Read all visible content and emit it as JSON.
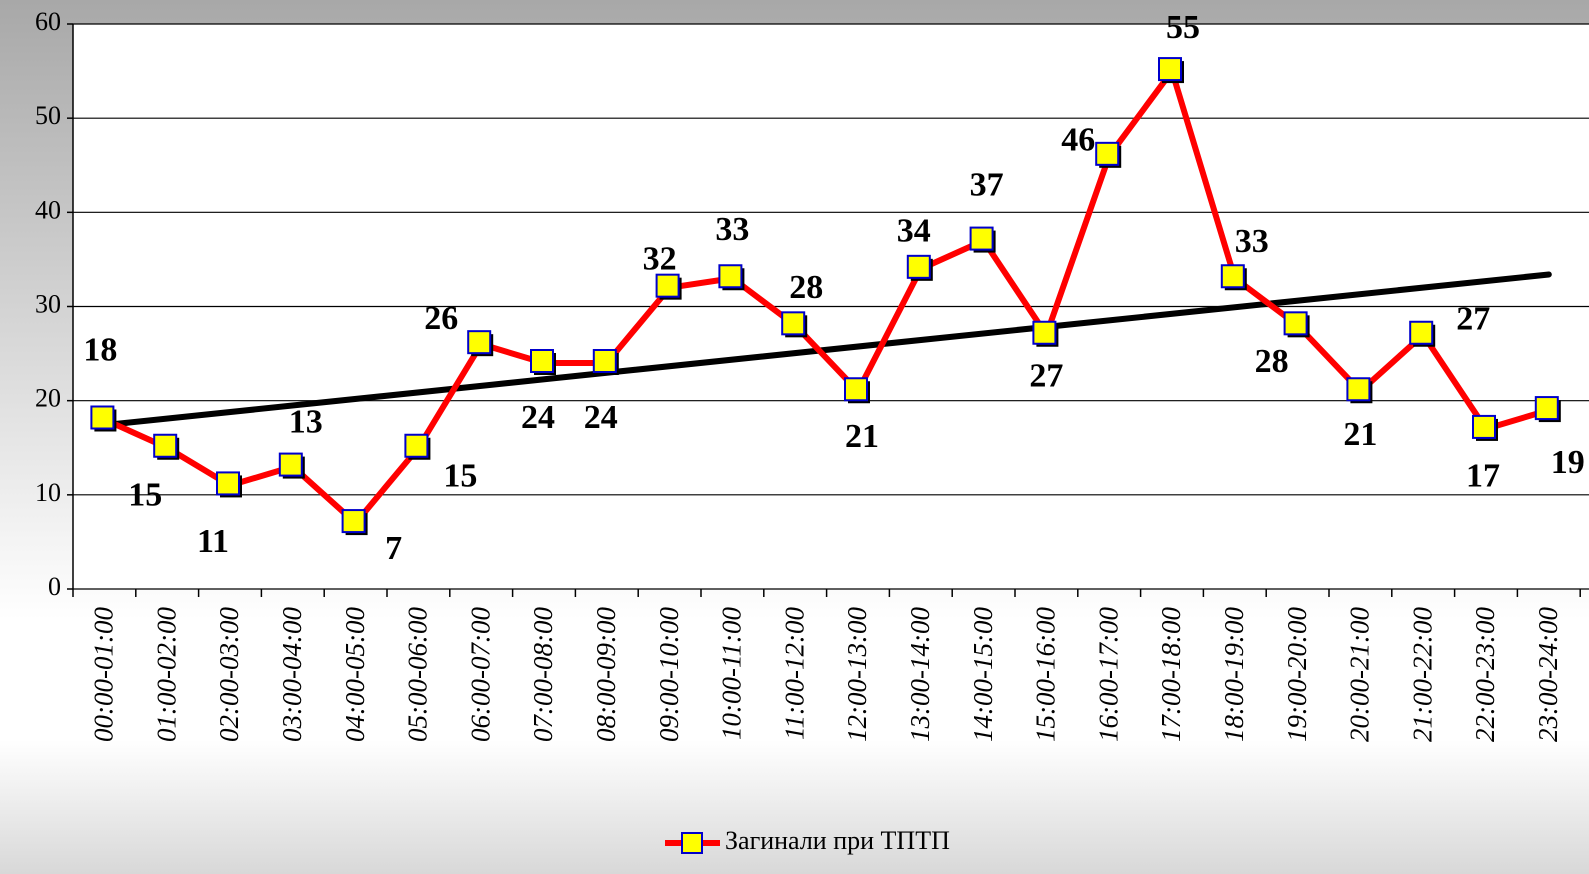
{
  "chart_data": {
    "type": "line",
    "categories": [
      "00:00-01:00",
      "01:00-02:00",
      "02:00-03:00",
      "03:00-04:00",
      "04:00-05:00",
      "05:00-06:00",
      "06:00-07:00",
      "07:00-08:00",
      "08:00-09:00",
      "09:00-10:00",
      "10:00-11:00",
      "11:00-12:00",
      "12:00-13:00",
      "13:00-14:00",
      "14:00-15:00",
      "15:00-16:00",
      "16:00-17:00",
      "17:00-18:00",
      "18:00-19:00",
      "19:00-20:00",
      "20:00-21:00",
      "21:00-22:00",
      "22:00-23:00",
      "23:00-24:00"
    ],
    "series": [
      {
        "name": "Загинали при ТПТП",
        "color": "#ff0000",
        "marker_color": "#ffff00",
        "values": [
          18,
          15,
          11,
          13,
          7,
          15,
          26,
          24,
          24,
          32,
          33,
          28,
          21,
          34,
          37,
          27,
          46,
          55,
          33,
          28,
          21,
          27,
          17,
          19
        ]
      }
    ],
    "trendline": {
      "color": "#000000",
      "start": 17.4,
      "end": 33.4
    },
    "ylim": [
      0,
      60
    ],
    "yticks": [
      0,
      10,
      20,
      30,
      40,
      50,
      60
    ],
    "grid": true,
    "legend": "bottom"
  }
}
